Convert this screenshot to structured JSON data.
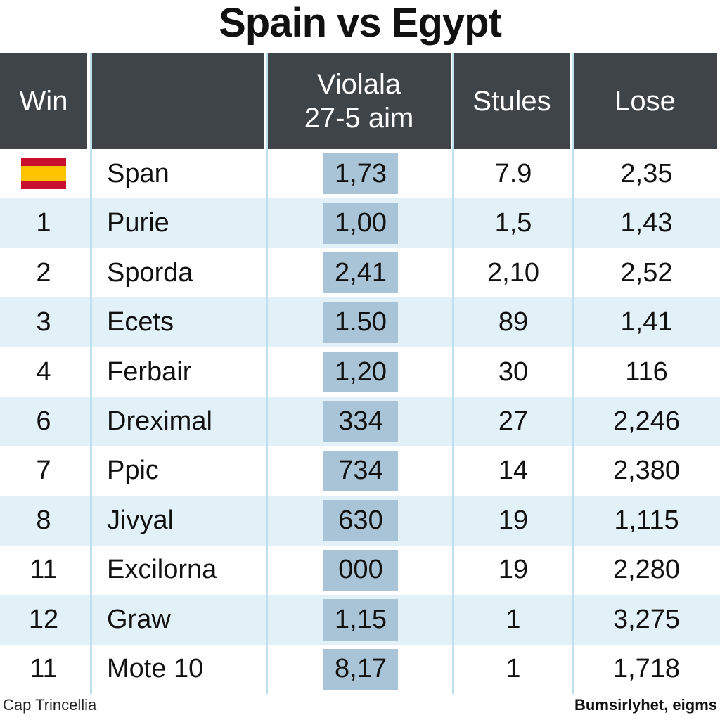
{
  "title": "Spain vs Egypt",
  "table": {
    "header": [
      "Win",
      [
        "Violala",
        "27-5 aim"
      ],
      "Stules",
      "Lose"
    ],
    "rows": [
      {
        "flag": true,
        "name": "Span",
        "cells": [
          "1,73",
          "7.9",
          "2,35"
        ]
      },
      {
        "rank": "1",
        "name": "Purie",
        "cells": [
          "1,00",
          "1,5",
          "1,43"
        ]
      },
      {
        "rank": "2",
        "name": "Sporda",
        "cells": [
          "2,41",
          "2,10",
          "2,52"
        ]
      },
      {
        "rank": "3",
        "name": "Ecets",
        "cells": [
          "1.50",
          "89",
          "1,41"
        ]
      },
      {
        "rank": "4",
        "name": "Ferbair",
        "cells": [
          "1,20",
          "30",
          "116"
        ]
      },
      {
        "rank": "6",
        "name": "Dreximal",
        "cells": [
          "334",
          "27",
          "2,246"
        ]
      },
      {
        "rank": "7",
        "name": "Ppic",
        "cells": [
          "734",
          "14",
          "2,380"
        ]
      },
      {
        "rank": "8",
        "name": "Jivyal",
        "cells": [
          "630",
          "19",
          "1,115"
        ]
      },
      {
        "rank": "11",
        "name": "Excilorna",
        "cells": [
          "000",
          "19",
          "2,280"
        ]
      },
      {
        "rank": "12",
        "name": "Graw",
        "cells": [
          "1,15",
          "1",
          "3,275"
        ]
      },
      {
        "rank": "11",
        "name": "Mote 10",
        "cells": [
          "8,17",
          "1",
          "1,718"
        ]
      }
    ]
  },
  "footer": {
    "left": "Cap Trincellia",
    "right": "Bumsirlyhet, eigms"
  }
}
